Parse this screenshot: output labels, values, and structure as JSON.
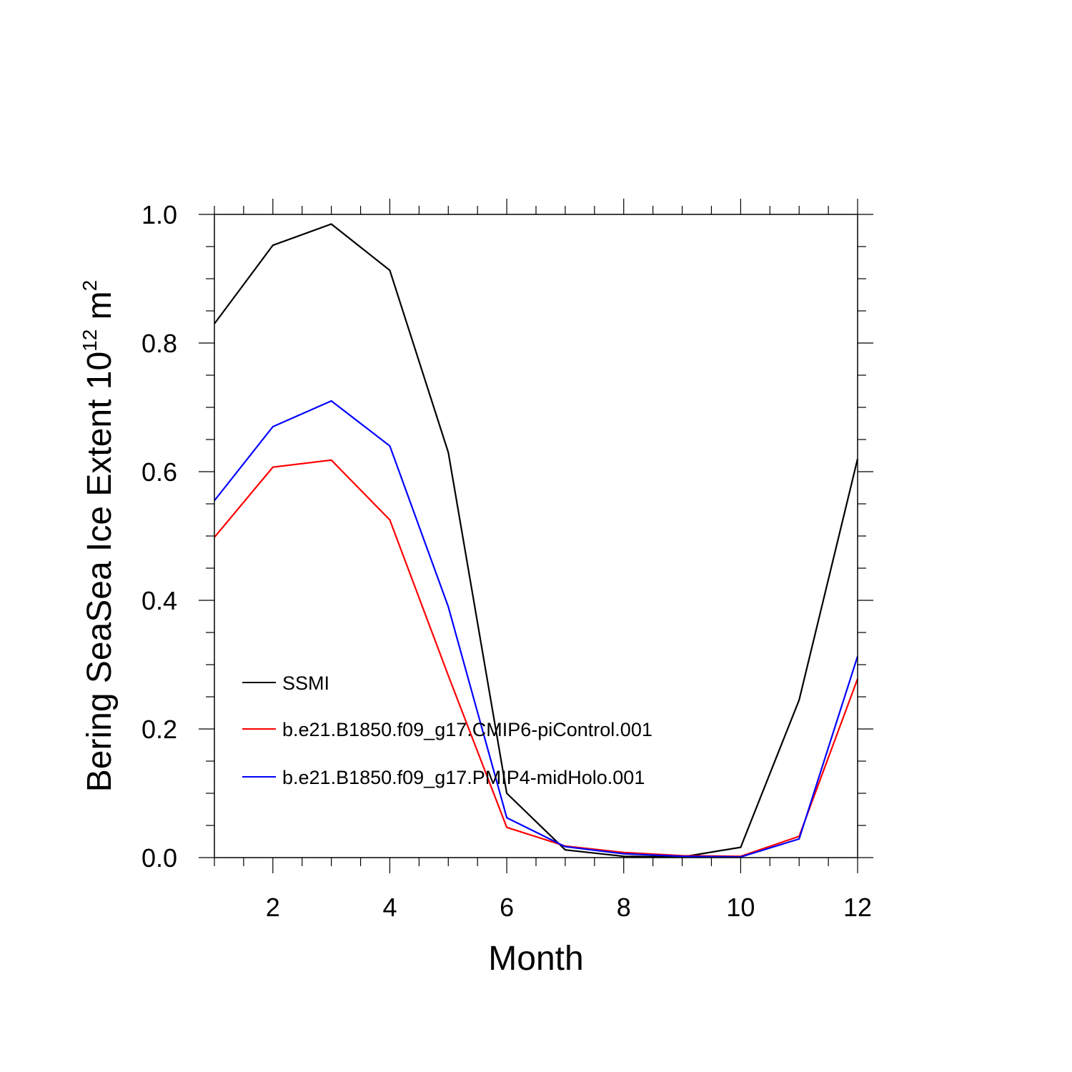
{
  "chart_data": {
    "type": "line",
    "title": "",
    "xlabel": "Month",
    "ylabel": {
      "main": "Bering SeaSea Ice Extent 10",
      "superscript1": "12",
      "unit": " m",
      "superscript2": "2"
    },
    "xlim": [
      1,
      12
    ],
    "ylim": [
      0.0,
      1.0
    ],
    "x_ticks": [
      2,
      4,
      6,
      8,
      10,
      12
    ],
    "x_tick_labels": [
      "2",
      "4",
      "6",
      "8",
      "10",
      "12"
    ],
    "y_ticks": [
      0.0,
      0.2,
      0.4,
      0.6,
      0.8,
      1.0
    ],
    "y_tick_labels": [
      "0.0",
      "0.2",
      "0.4",
      "0.6",
      "0.8",
      "1.0"
    ],
    "x": [
      1,
      2,
      3,
      4,
      5,
      6,
      7,
      8,
      9,
      10,
      11,
      12
    ],
    "series": [
      {
        "name": "SSMI",
        "color": "#000000",
        "values": [
          0.83,
          0.952,
          0.985,
          0.913,
          0.63,
          0.1,
          0.012,
          0.002,
          0.001,
          0.016,
          0.245,
          0.62
        ]
      },
      {
        "name": "b.e21.B1850.f09_g17.CMIP6-piControl.001",
        "color": "#ff0000",
        "values": [
          0.498,
          0.607,
          0.618,
          0.525,
          0.283,
          0.047,
          0.018,
          0.008,
          0.003,
          0.002,
          0.033,
          0.278
        ]
      },
      {
        "name": "b.e21.B1850.f09_g17.PMIP4-midHolo.001",
        "color": "#0000ff",
        "values": [
          0.555,
          0.67,
          0.71,
          0.64,
          0.39,
          0.062,
          0.017,
          0.006,
          0.002,
          0.001,
          0.029,
          0.313
        ]
      }
    ],
    "legend_position": "lower-left inside",
    "grid": false
  }
}
